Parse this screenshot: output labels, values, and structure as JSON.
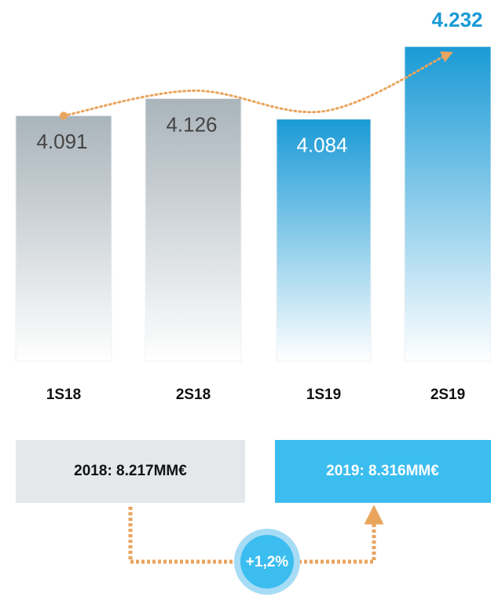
{
  "chart_data": {
    "type": "bar",
    "categories": [
      "1S18",
      "2S18",
      "1S19",
      "2S19"
    ],
    "values": [
      4.091,
      4.126,
      4.084,
      4.232
    ],
    "colors": [
      "#a9b4bb",
      "#a9b4bb",
      "#1a9ad6",
      "#1a9ad6"
    ],
    "ylim": [
      3.59,
      4.25
    ],
    "highlight_color": "#1a9ad6"
  },
  "summary": {
    "total_2018": "2018: 8.217MM€",
    "total_2019": "2019: 8.316MM€",
    "growth": "+1,2%"
  }
}
